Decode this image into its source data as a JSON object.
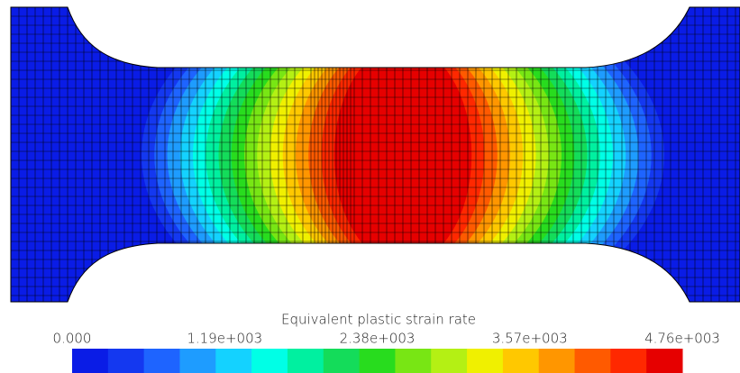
{
  "colorbar": {
    "title": "Equivalent plastic strain rate",
    "ticks": [
      "0.000",
      "1.19e+003",
      "2.38e+003",
      "3.57e+003",
      "4.76e+003"
    ],
    "colors": [
      "#0a1ce6",
      "#1438f0",
      "#1e64ff",
      "#1e9cff",
      "#14d2ff",
      "#00ffe6",
      "#00f0a0",
      "#14dc5a",
      "#28dc1e",
      "#78e614",
      "#b4f014",
      "#f0f000",
      "#ffc800",
      "#ff9600",
      "#ff5a00",
      "#ff2800",
      "#e60000"
    ]
  }
}
